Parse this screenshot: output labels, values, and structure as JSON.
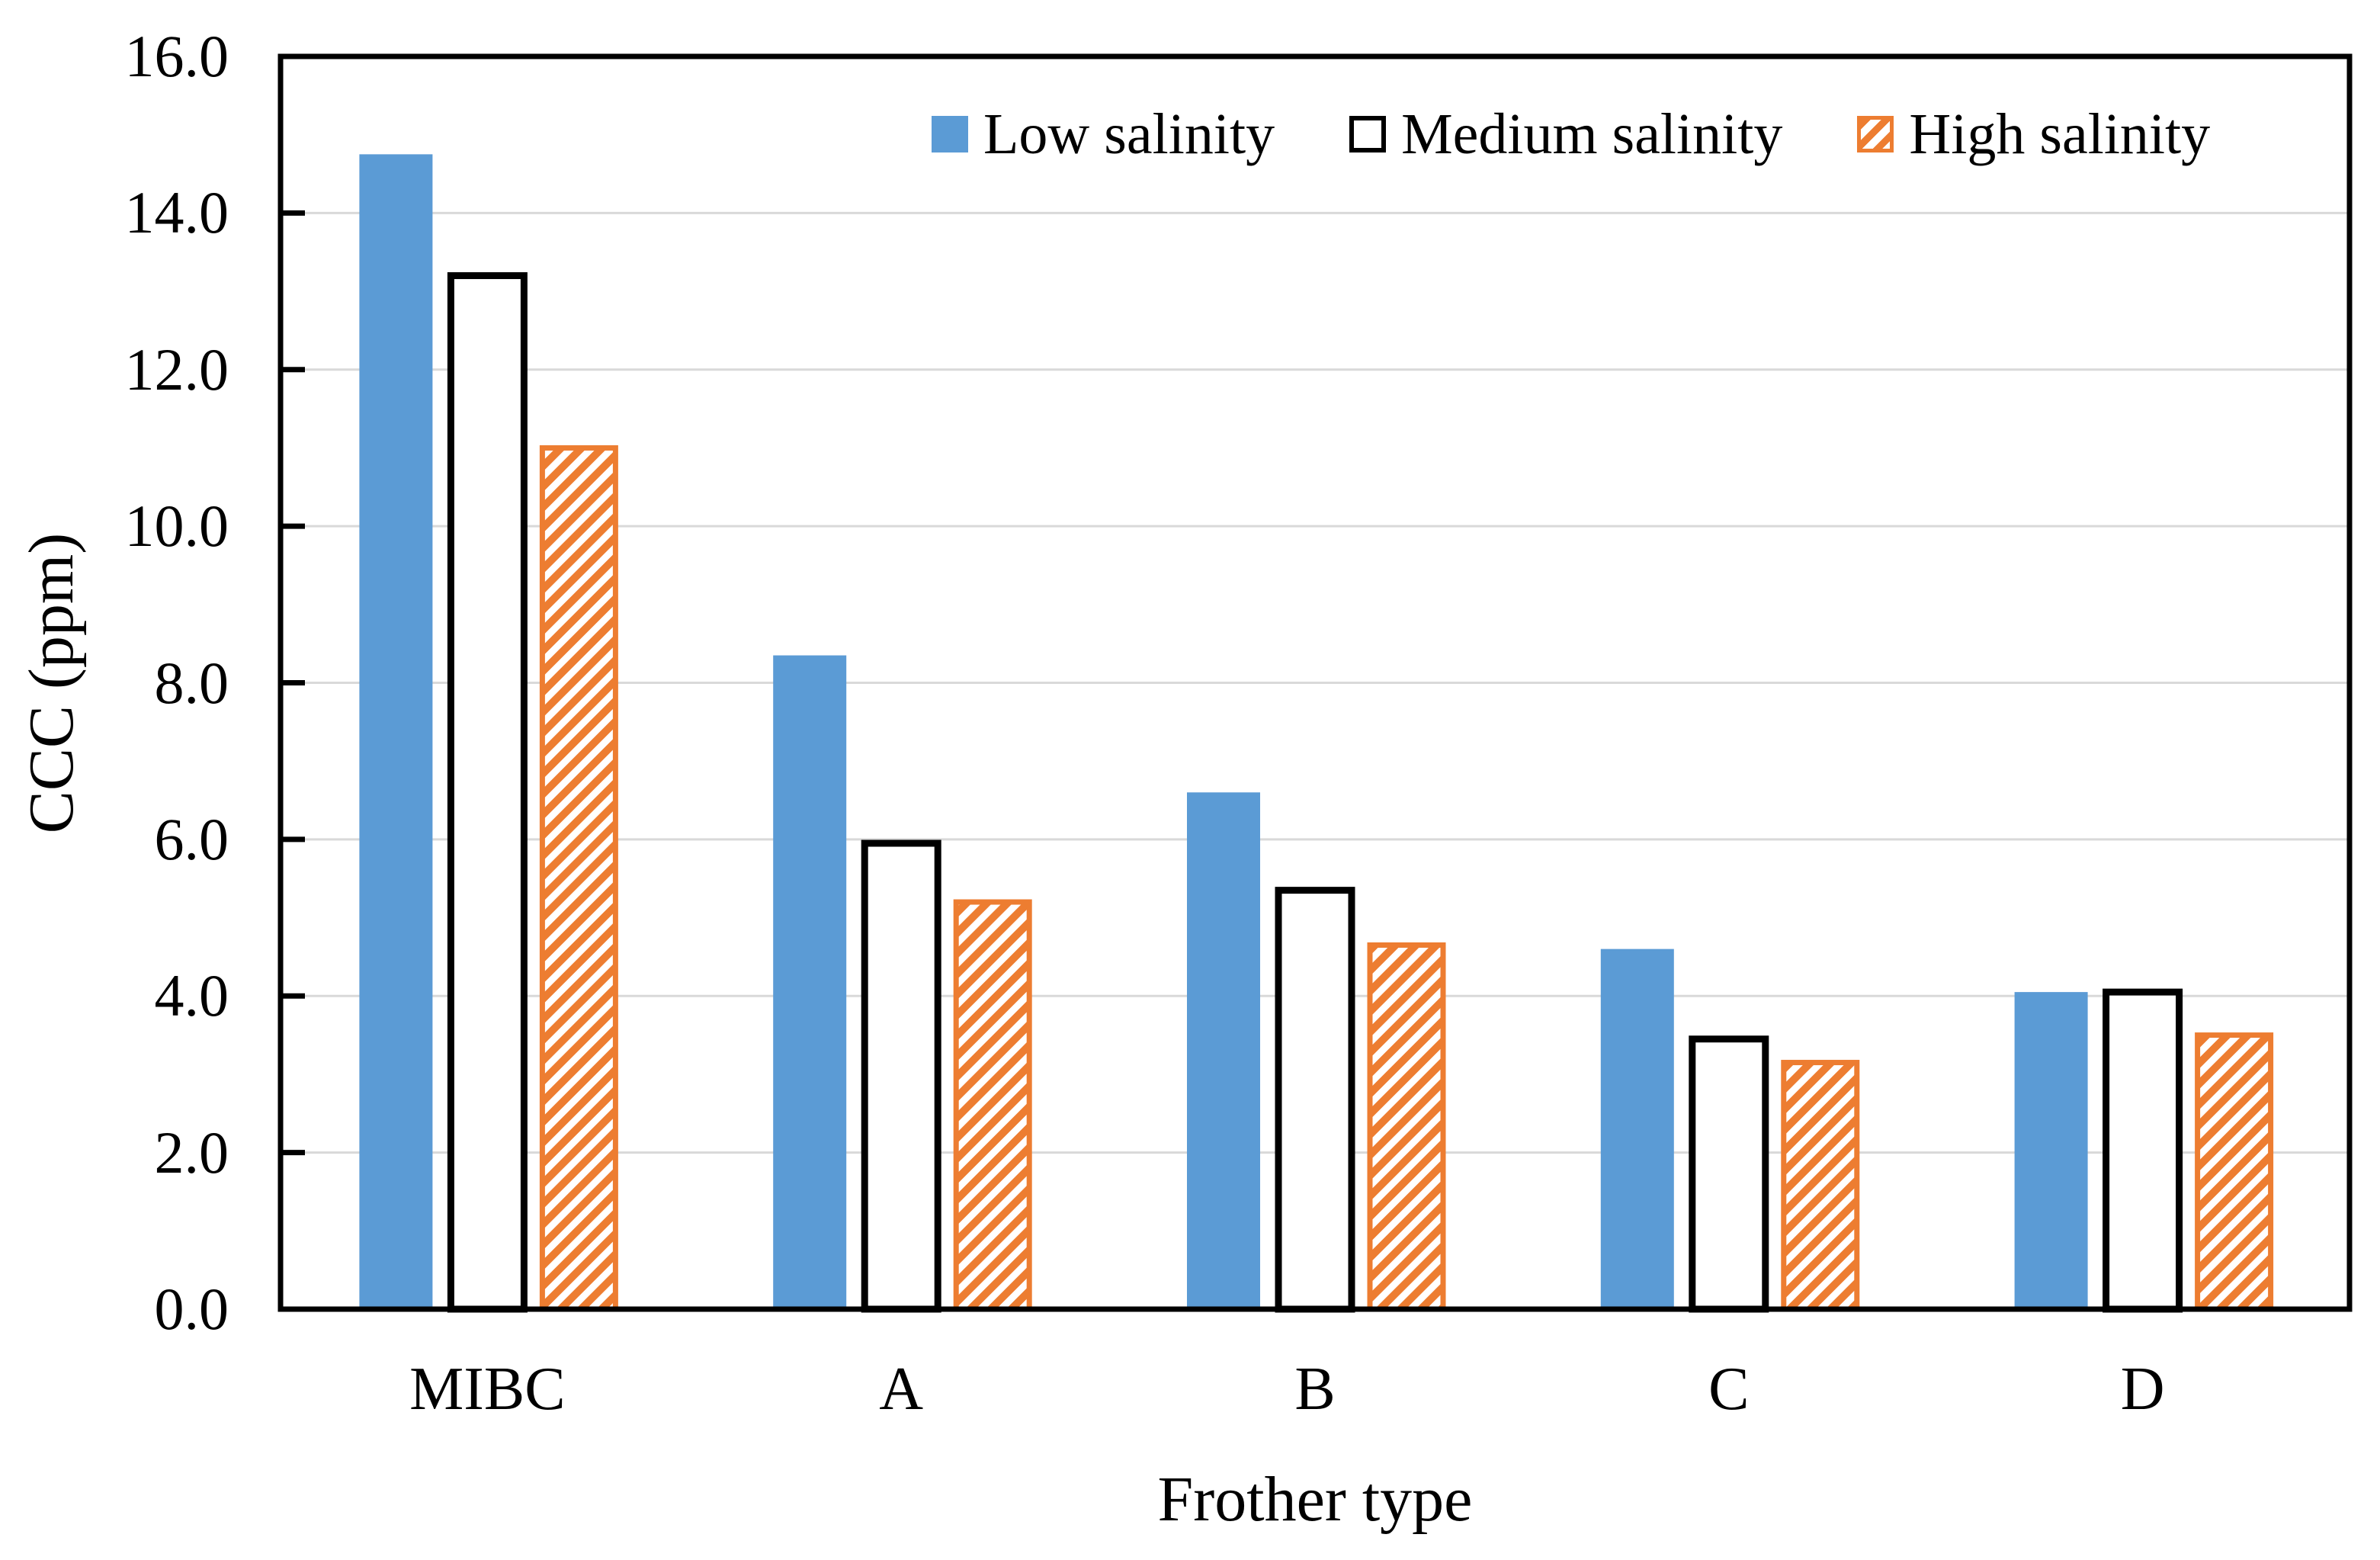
{
  "chart_data": {
    "type": "bar",
    "title": "",
    "xlabel": "Frother type",
    "ylabel": "CCC (ppm)",
    "categories": [
      "MIBC",
      "A",
      "B",
      "C",
      "D"
    ],
    "series": [
      {
        "name": "Low salinity",
        "style": "solid",
        "color": "#5B9BD5",
        "values": [
          14.75,
          8.35,
          6.6,
          4.6,
          4.05
        ]
      },
      {
        "name": "Medium salinity",
        "style": "outline",
        "fill": "#FFFFFF",
        "border": "#000000",
        "values": [
          13.2,
          5.95,
          5.35,
          3.45,
          4.05
        ]
      },
      {
        "name": "High salinity",
        "style": "hatched",
        "color": "#ED7D31",
        "values": [
          11.0,
          5.2,
          4.65,
          3.15,
          3.5
        ]
      }
    ],
    "ylim": [
      0,
      16
    ],
    "ytick_step": 2,
    "ytick_labels": [
      "0.0",
      "2.0",
      "4.0",
      "6.0",
      "8.0",
      "10.0",
      "12.0",
      "14.0",
      "16.0"
    ],
    "grid": "horizontal",
    "gridline_color": "#D9D9D9",
    "axis_color": "#000000",
    "background": "#FFFFFF",
    "legend_position": "top-inside"
  }
}
